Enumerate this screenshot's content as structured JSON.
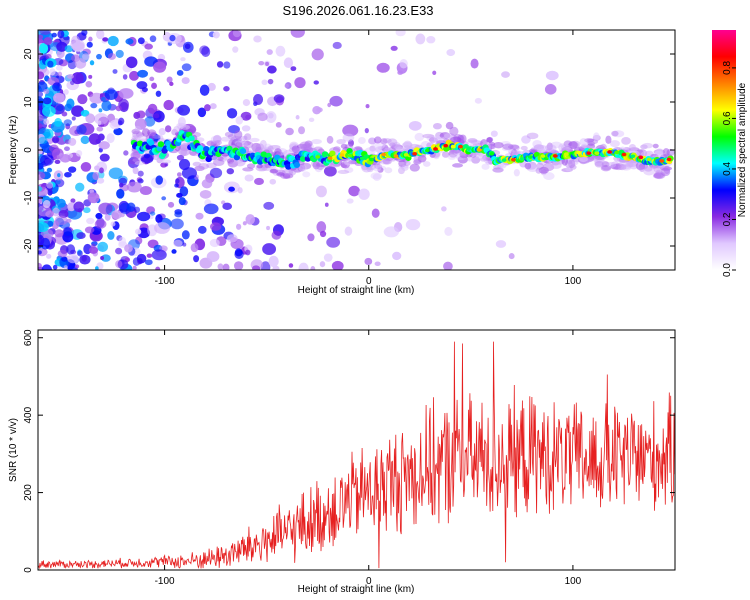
{
  "title": "S196.2026.061.16.23.E33",
  "chart_data": [
    {
      "type": "heatmap",
      "title": "S196.2026.061.16.23.E33",
      "xlabel": "Height of straight line (km)",
      "ylabel": "Frequency (Hz)",
      "xlim": [
        -162,
        150
      ],
      "ylim": [
        -25,
        25
      ],
      "xticks": [
        -100,
        0,
        100
      ],
      "xtick_labels": [
        "-100",
        "0",
        "100"
      ],
      "yticks": [
        20,
        10,
        0,
        -10,
        -20
      ],
      "ytick_labels": [
        "20",
        "10",
        "0",
        "-10",
        "-20"
      ],
      "colorbar": {
        "label": "Normalized spectral amplitude",
        "range": [
          0,
          0.95
        ],
        "ticks": [
          0,
          0.2,
          0.4,
          0.6,
          0.8
        ],
        "tick_labels": [
          "0.0",
          "0.2",
          "0.4",
          "0.6",
          "0.8"
        ],
        "colors": [
          "#ffffff",
          "#e0c8ff",
          "#8a2be2",
          "#0000ff",
          "#00ffff",
          "#00ff00",
          "#ffff00",
          "#ff8000",
          "#ff0000",
          "#ff0090"
        ]
      },
      "ridge": {
        "x": [
          -110,
          -100,
          -90,
          -80,
          -70,
          -60,
          -50,
          -40,
          -30,
          -20,
          -10,
          0,
          10,
          20,
          30,
          40,
          50,
          58,
          62,
          70,
          80,
          90,
          100,
          110,
          120,
          130,
          140,
          148
        ],
        "frequency": [
          1,
          0,
          3,
          -1,
          0,
          -1,
          -2,
          -3,
          -1,
          -2,
          -1,
          -2,
          -1,
          -1,
          0,
          1,
          0,
          0,
          -2,
          -2,
          -1.5,
          -1.5,
          -1,
          -0.5,
          -0.5,
          -1.5,
          -2.5,
          -2
        ]
      }
    },
    {
      "type": "line",
      "xlabel": "Height of straight line (km)",
      "ylabel": "SNR (10 * v/v)",
      "xlim": [
        -162,
        150
      ],
      "ylim": [
        0,
        620
      ],
      "xticks": [
        -100,
        0,
        100
      ],
      "xtick_labels": [
        "-100",
        "0",
        "100"
      ],
      "yticks": [
        0,
        200,
        400,
        600
      ],
      "ytick_labels": [
        "0",
        "200",
        "400",
        "600"
      ],
      "color": "#e62020",
      "envelope": {
        "x": [
          -162,
          -140,
          -120,
          -100,
          -90,
          -80,
          -70,
          -60,
          -50,
          -40,
          -30,
          -20,
          -10,
          0,
          10,
          20,
          30,
          40,
          50,
          60,
          70,
          80,
          90,
          100,
          110,
          120,
          130,
          140,
          150
        ],
        "mean": [
          15,
          15,
          18,
          22,
          22,
          28,
          38,
          55,
          75,
          95,
          120,
          150,
          180,
          205,
          225,
          245,
          265,
          275,
          285,
          290,
          290,
          295,
          290,
          285,
          280,
          285,
          290,
          290,
          300
        ],
        "amplitude": [
          10,
          10,
          12,
          15,
          20,
          25,
          35,
          50,
          65,
          75,
          90,
          100,
          110,
          120,
          130,
          140,
          150,
          160,
          160,
          160,
          160,
          150,
          140,
          140,
          140,
          140,
          140,
          140,
          140
        ]
      },
      "peaks": [
        {
          "x": 42,
          "y": 590
        },
        {
          "x": 46,
          "y": 585
        },
        {
          "x": 61,
          "y": 590
        },
        {
          "x": 67,
          "y": 620
        },
        {
          "x": 117,
          "y": 505
        }
      ],
      "dips": [
        {
          "x": 5,
          "y": 5
        },
        {
          "x": 67,
          "y": 20
        }
      ]
    }
  ]
}
